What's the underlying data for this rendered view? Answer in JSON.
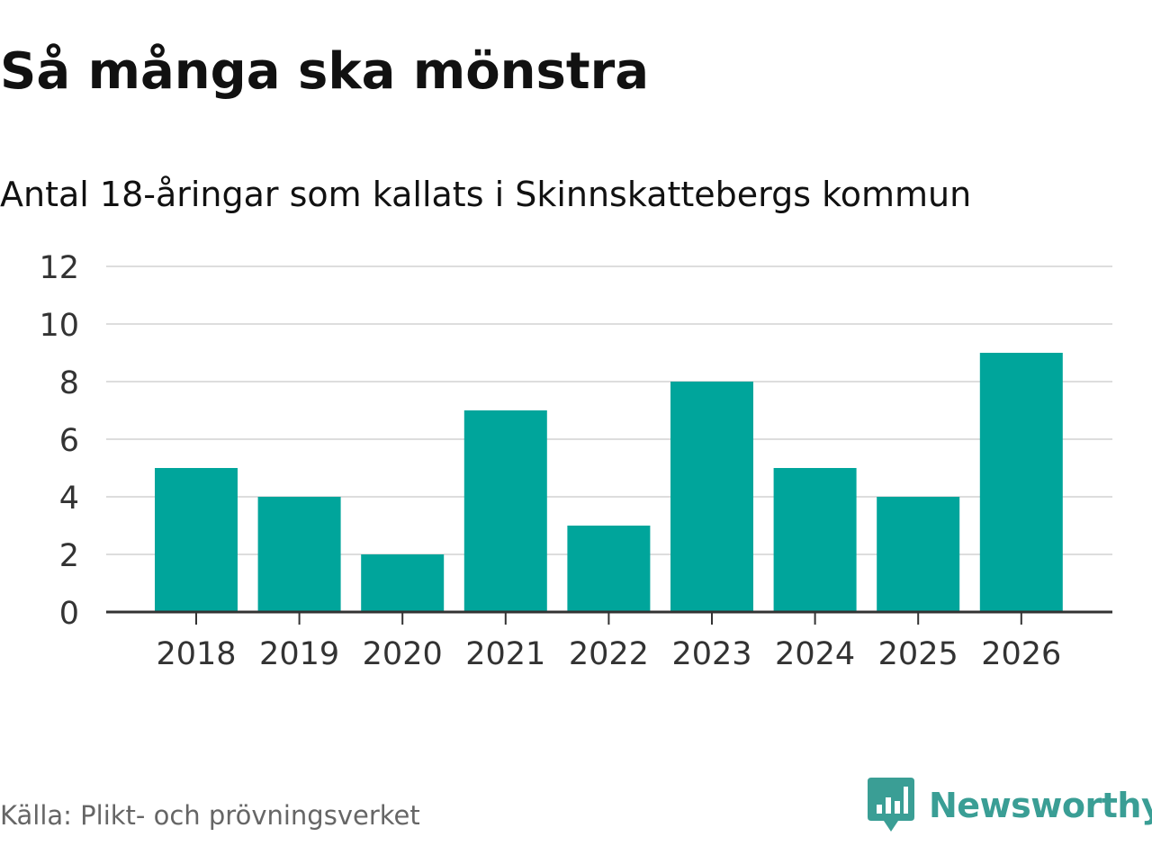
{
  "chart_data": {
    "type": "bar",
    "title": "Så många ska mönstra",
    "subtitle": "Antal 18-åringar som kallats i Skinnskattebergs kommun",
    "categories": [
      "2018",
      "2019",
      "2020",
      "2021",
      "2022",
      "2023",
      "2024",
      "2025",
      "2026"
    ],
    "values": [
      5,
      4,
      2,
      7,
      3,
      8,
      5,
      4,
      9
    ],
    "ylim": [
      0,
      12
    ],
    "yticks": [
      0,
      2,
      4,
      6,
      8,
      10,
      12
    ],
    "grid": true,
    "bar_color": "#00a59b",
    "grid_color": "#dddddd",
    "axis_color": "#333333"
  },
  "source": "Källa: Plikt- och prövningsverket",
  "brand": {
    "name": "Newsworthy",
    "icon": "newsworthy-logo-icon",
    "color": "#3a9e95"
  }
}
